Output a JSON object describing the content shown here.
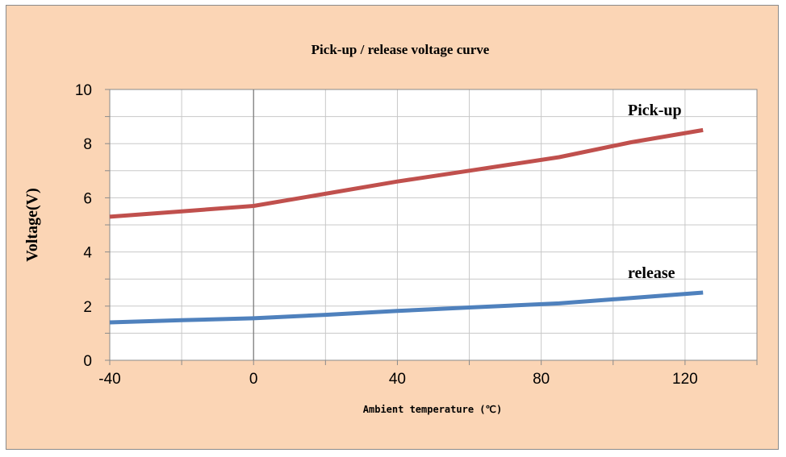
{
  "chart_data": {
    "type": "line",
    "title": "Pick-up / release voltage curve",
    "xlabel": "Ambient temperature (℃)",
    "ylabel": "Voltage(V)",
    "xlim": [
      -40,
      140
    ],
    "ylim": [
      0,
      10
    ],
    "x_ticks": [
      "-40",
      "0",
      "40",
      "80",
      "120"
    ],
    "y_ticks": [
      "0",
      "2",
      "4",
      "6",
      "8",
      "10"
    ],
    "grid": true,
    "series": [
      {
        "name": "Pick-up",
        "color": "#c0504d",
        "x": [
          -40,
          -20,
          0,
          20,
          40,
          60,
          85,
          105,
          125
        ],
        "y": [
          5.3,
          5.5,
          5.7,
          6.15,
          6.6,
          7.0,
          7.5,
          8.05,
          8.5
        ]
      },
      {
        "name": "release",
        "color": "#4f81bd",
        "x": [
          -40,
          -20,
          0,
          20,
          40,
          60,
          85,
          105,
          125
        ],
        "y": [
          1.4,
          1.48,
          1.55,
          1.68,
          1.82,
          1.95,
          2.1,
          2.3,
          2.5
        ]
      }
    ]
  }
}
